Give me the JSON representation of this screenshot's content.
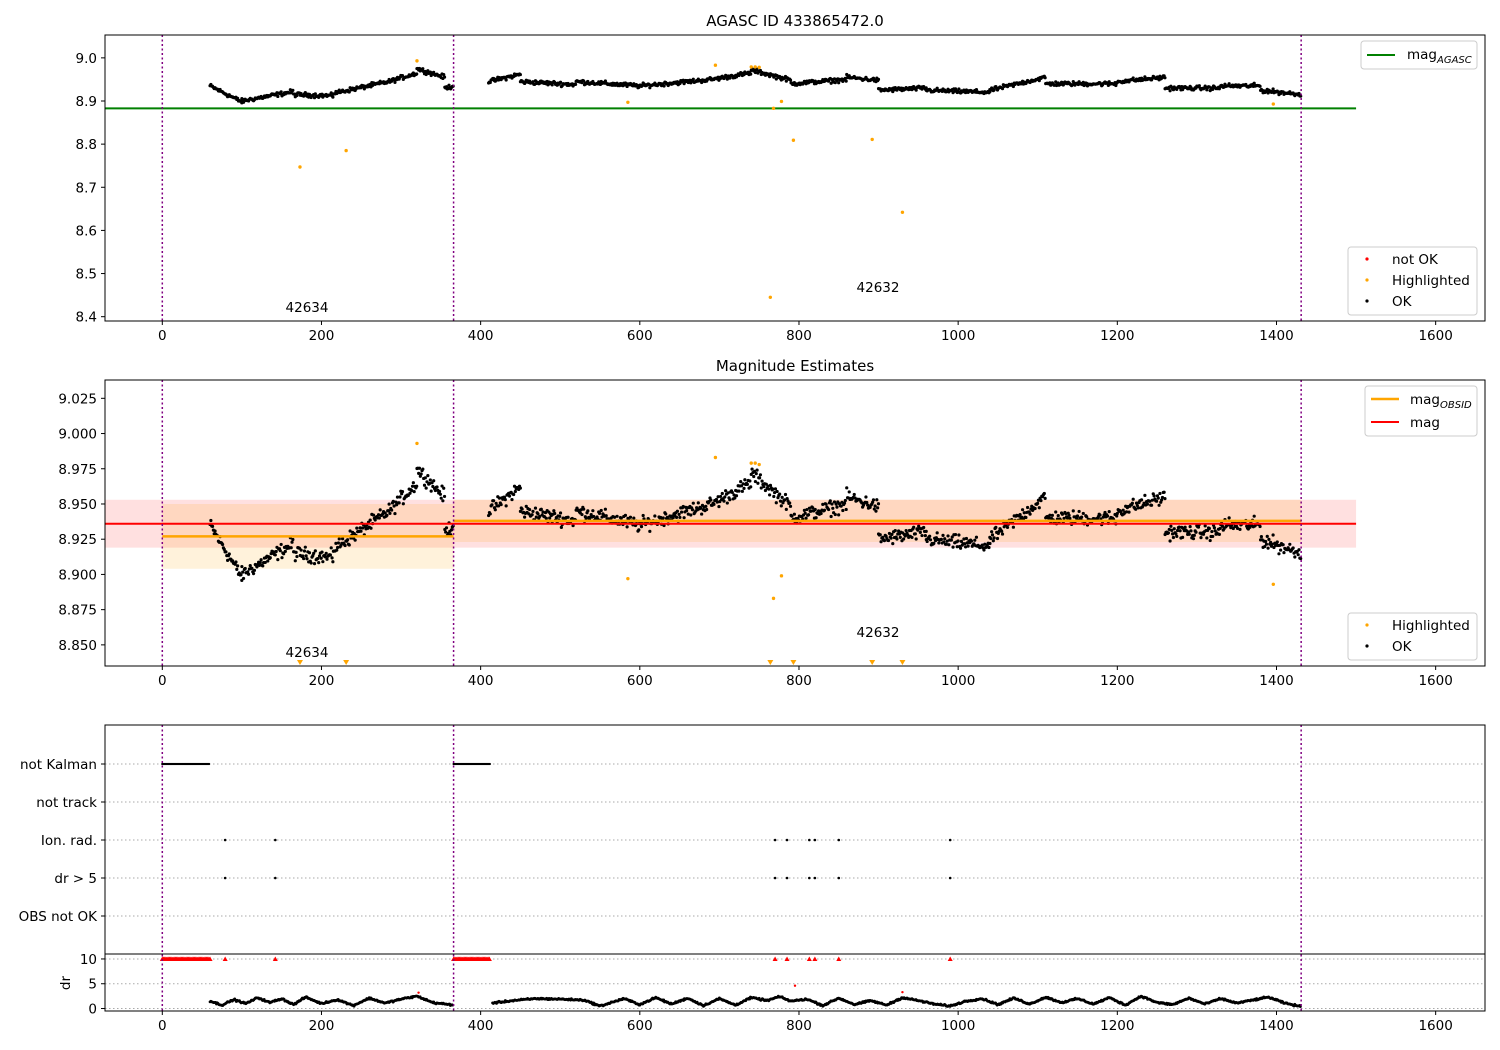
{
  "chart_data": [
    {
      "type": "scatter",
      "title": "AGASC ID 433865472.0",
      "xlim": [
        -72,
        1662
      ],
      "ylim": [
        8.39,
        9.053
      ],
      "x_ticks": [
        0,
        200,
        400,
        600,
        800,
        1000,
        1200,
        1400,
        1600
      ],
      "y_ticks": [
        8.4,
        8.5,
        8.6,
        8.7,
        8.8,
        8.9,
        9.0
      ],
      "y_tick_labels": [
        "8.4",
        "8.5",
        "8.6",
        "8.7",
        "8.8",
        "8.9",
        "9.0"
      ],
      "grid": false,
      "obs_boundaries": [
        0,
        366,
        1431
      ],
      "annotations": [
        {
          "text": "42634",
          "x": 183,
          "y": 8.415
        },
        {
          "text": "42632",
          "x": 900,
          "y": 8.462
        }
      ],
      "mag_agasc": {
        "name": "mag",
        "subscript": "AGASC",
        "value": 8.883,
        "x": [
          -72,
          1500
        ],
        "color": "#008000"
      },
      "highlighted_points": [
        [
          173,
          8.747
        ],
        [
          231,
          8.785
        ],
        [
          320,
          8.993
        ],
        [
          585,
          8.897
        ],
        [
          695,
          8.983
        ],
        [
          740,
          8.979
        ],
        [
          745,
          8.979
        ],
        [
          750,
          8.978
        ],
        [
          764,
          8.445
        ],
        [
          768,
          8.883
        ],
        [
          778,
          8.899
        ],
        [
          793,
          8.809
        ],
        [
          892,
          8.811
        ],
        [
          930,
          8.642
        ],
        [
          1396,
          8.893
        ]
      ],
      "ok_segments": [
        {
          "x0": 60,
          "x1": 100,
          "y0": 8.935,
          "y1": 8.898
        },
        {
          "x0": 100,
          "x1": 165,
          "y0": 8.9,
          "y1": 8.922
        },
        {
          "x0": 165,
          "x1": 215,
          "y0": 8.915,
          "y1": 8.912
        },
        {
          "x0": 215,
          "x1": 285,
          "y0": 8.918,
          "y1": 8.945
        },
        {
          "x0": 285,
          "x1": 320,
          "y0": 8.945,
          "y1": 8.965
        },
        {
          "x0": 320,
          "x1": 355,
          "y0": 8.975,
          "y1": 8.955
        },
        {
          "x0": 355,
          "x1": 366,
          "y0": 8.93,
          "y1": 8.935
        },
        {
          "x0": 410,
          "x1": 450,
          "y0": 8.945,
          "y1": 8.962
        },
        {
          "x0": 450,
          "x1": 520,
          "y0": 8.945,
          "y1": 8.938
        },
        {
          "x0": 520,
          "x1": 600,
          "y0": 8.945,
          "y1": 8.935
        },
        {
          "x0": 600,
          "x1": 690,
          "y0": 8.935,
          "y1": 8.95
        },
        {
          "x0": 690,
          "x1": 740,
          "y0": 8.95,
          "y1": 8.965
        },
        {
          "x0": 740,
          "x1": 790,
          "y0": 8.972,
          "y1": 8.948
        },
        {
          "x0": 790,
          "x1": 860,
          "y0": 8.94,
          "y1": 8.95
        },
        {
          "x0": 860,
          "x1": 900,
          "y0": 8.955,
          "y1": 8.948
        },
        {
          "x0": 900,
          "x1": 960,
          "y0": 8.925,
          "y1": 8.93
        },
        {
          "x0": 960,
          "x1": 1040,
          "y0": 8.925,
          "y1": 8.92
        },
        {
          "x0": 1040,
          "x1": 1110,
          "y0": 8.925,
          "y1": 8.955
        },
        {
          "x0": 1110,
          "x1": 1200,
          "y0": 8.94,
          "y1": 8.94
        },
        {
          "x0": 1200,
          "x1": 1260,
          "y0": 8.945,
          "y1": 8.955
        },
        {
          "x0": 1260,
          "x1": 1330,
          "y0": 8.93,
          "y1": 8.93
        },
        {
          "x0": 1330,
          "x1": 1380,
          "y0": 8.935,
          "y1": 8.935
        },
        {
          "x0": 1380,
          "x1": 1431,
          "y0": 8.925,
          "y1": 8.915
        }
      ],
      "legend_lines": [
        {
          "label": "mag",
          "subscript": "AGASC",
          "color": "#008000"
        }
      ],
      "legend_points": [
        {
          "label": "not OK",
          "color": "#ff0000"
        },
        {
          "label": "Highlighted",
          "color": "#ffa500"
        },
        {
          "label": "OK",
          "color": "#000000"
        }
      ],
      "legend_placement": [
        "upper right",
        "lower right"
      ]
    },
    {
      "type": "scatter",
      "title": "Magnitude Estimates",
      "xlim": [
        -72,
        1662
      ],
      "ylim": [
        8.835,
        9.038
      ],
      "x_ticks": [
        0,
        200,
        400,
        600,
        800,
        1000,
        1200,
        1400,
        1600
      ],
      "y_ticks": [
        8.85,
        8.875,
        8.9,
        8.925,
        8.95,
        8.975,
        9.0,
        9.025
      ],
      "y_tick_labels": [
        "8.850",
        "8.875",
        "8.900",
        "8.925",
        "8.950",
        "8.975",
        "9.000",
        "9.025"
      ],
      "grid": false,
      "obs_boundaries": [
        0,
        366,
        1431
      ],
      "annotations": [
        {
          "text": "42634",
          "x": 183,
          "y": 8.842
        },
        {
          "text": "42632",
          "x": 900,
          "y": 8.856
        }
      ],
      "mag": {
        "name": "mag",
        "value": 8.936,
        "band": [
          8.919,
          8.953
        ],
        "x": [
          -72,
          1500
        ],
        "color": "#ff0000"
      },
      "mag_obsid": {
        "name": "mag",
        "subscript": "OBSID",
        "color": "#ffa500",
        "segments": [
          {
            "x": [
              0,
              366
            ],
            "value": 8.927,
            "band": [
              8.904,
              8.95
            ]
          },
          {
            "x": [
              366,
              1431
            ],
            "value": 8.938,
            "band": [
              8.923,
              8.953
            ]
          }
        ]
      },
      "highlighted_points": [
        [
          320,
          8.993
        ],
        [
          585,
          8.897
        ],
        [
          695,
          8.983
        ],
        [
          740,
          8.979
        ],
        [
          745,
          8.979
        ],
        [
          750,
          8.978
        ],
        [
          768,
          8.883
        ],
        [
          778,
          8.899
        ],
        [
          1396,
          8.893
        ]
      ],
      "off_scale_markers_x": [
        173,
        231,
        764,
        793,
        892,
        930
      ],
      "ok_segments": [
        {
          "x0": 60,
          "x1": 100,
          "y0": 8.935,
          "y1": 8.898
        },
        {
          "x0": 100,
          "x1": 165,
          "y0": 8.9,
          "y1": 8.922
        },
        {
          "x0": 165,
          "x1": 215,
          "y0": 8.915,
          "y1": 8.912
        },
        {
          "x0": 215,
          "x1": 285,
          "y0": 8.918,
          "y1": 8.945
        },
        {
          "x0": 285,
          "x1": 320,
          "y0": 8.945,
          "y1": 8.965
        },
        {
          "x0": 320,
          "x1": 355,
          "y0": 8.975,
          "y1": 8.955
        },
        {
          "x0": 355,
          "x1": 366,
          "y0": 8.93,
          "y1": 8.935
        },
        {
          "x0": 410,
          "x1": 450,
          "y0": 8.945,
          "y1": 8.962
        },
        {
          "x0": 450,
          "x1": 520,
          "y0": 8.945,
          "y1": 8.938
        },
        {
          "x0": 520,
          "x1": 600,
          "y0": 8.945,
          "y1": 8.935
        },
        {
          "x0": 600,
          "x1": 690,
          "y0": 8.935,
          "y1": 8.95
        },
        {
          "x0": 690,
          "x1": 740,
          "y0": 8.95,
          "y1": 8.965
        },
        {
          "x0": 740,
          "x1": 790,
          "y0": 8.972,
          "y1": 8.948
        },
        {
          "x0": 790,
          "x1": 860,
          "y0": 8.94,
          "y1": 8.95
        },
        {
          "x0": 860,
          "x1": 900,
          "y0": 8.955,
          "y1": 8.948
        },
        {
          "x0": 900,
          "x1": 960,
          "y0": 8.925,
          "y1": 8.93
        },
        {
          "x0": 960,
          "x1": 1040,
          "y0": 8.925,
          "y1": 8.92
        },
        {
          "x0": 1040,
          "x1": 1110,
          "y0": 8.925,
          "y1": 8.955
        },
        {
          "x0": 1110,
          "x1": 1200,
          "y0": 8.94,
          "y1": 8.94
        },
        {
          "x0": 1200,
          "x1": 1260,
          "y0": 8.945,
          "y1": 8.955
        },
        {
          "x0": 1260,
          "x1": 1330,
          "y0": 8.93,
          "y1": 8.93
        },
        {
          "x0": 1330,
          "x1": 1380,
          "y0": 8.935,
          "y1": 8.935
        },
        {
          "x0": 1380,
          "x1": 1431,
          "y0": 8.925,
          "y1": 8.915
        }
      ],
      "legend_lines": [
        {
          "label": "mag",
          "subscript": "OBSID",
          "color": "#ffa500"
        },
        {
          "label": "mag",
          "color": "#ff0000"
        }
      ],
      "legend_points": [
        {
          "label": "Highlighted",
          "color": "#ffa500"
        },
        {
          "label": "OK",
          "color": "#000000"
        }
      ],
      "legend_placement": [
        "upper right",
        "lower right"
      ]
    },
    {
      "type": "scatter",
      "title": "",
      "xlim": [
        -72,
        1662
      ],
      "x_ticks": [
        0,
        200,
        400,
        600,
        800,
        1000,
        1200,
        1400,
        1600
      ],
      "obs_boundaries": [
        0,
        366,
        1431
      ],
      "grid": true,
      "flag_rows": [
        {
          "label": "not Kalman",
          "points_x": [],
          "ranges": [
            [
              0,
              60
            ],
            [
              366,
              412
            ]
          ]
        },
        {
          "label": "not track",
          "points_x": [],
          "ranges": []
        },
        {
          "label": "Ion. rad.",
          "points_x": [
            79,
            142,
            770,
            785,
            813,
            820,
            850,
            990
          ],
          "ranges": []
        },
        {
          "label": "dr > 5",
          "points_x": [
            79,
            142,
            770,
            785,
            813,
            820,
            850,
            990
          ],
          "ranges": []
        },
        {
          "label": "OBS not OK",
          "points_x": [],
          "ranges": []
        }
      ],
      "dr": {
        "ylabel": "dr",
        "ylim": [
          -0.5,
          11
        ],
        "y_ticks": [
          0,
          5,
          10
        ],
        "y_tick_labels": [
          "0",
          "5",
          "10"
        ],
        "capped_value": 10,
        "capped_ranges": [
          [
            0,
            60
          ],
          [
            366,
            412
          ]
        ],
        "capped_points_x": [
          79,
          142,
          770,
          785,
          813,
          820,
          850,
          990
        ],
        "red_points": [
          [
            322,
            3.2
          ],
          [
            795,
            4.6
          ],
          [
            930,
            3.3
          ]
        ],
        "points": [
          [
            60,
            1.5
          ],
          [
            75,
            0.7
          ],
          [
            90,
            1.8
          ],
          [
            105,
            1.0
          ],
          [
            120,
            2.2
          ],
          [
            135,
            1.2
          ],
          [
            150,
            2.0
          ],
          [
            165,
            0.8
          ],
          [
            180,
            2.3
          ],
          [
            200,
            1.0
          ],
          [
            220,
            1.8
          ],
          [
            240,
            0.6
          ],
          [
            260,
            2.1
          ],
          [
            280,
            1.1
          ],
          [
            300,
            1.9
          ],
          [
            320,
            2.5
          ],
          [
            340,
            1.2
          ],
          [
            366,
            0.7
          ],
          [
            415,
            1.1
          ],
          [
            440,
            1.6
          ],
          [
            470,
            2.0
          ],
          [
            500,
            1.9
          ],
          [
            530,
            1.7
          ],
          [
            550,
            0.5
          ],
          [
            580,
            2.0
          ],
          [
            600,
            0.8
          ],
          [
            620,
            2.2
          ],
          [
            640,
            0.9
          ],
          [
            660,
            2.1
          ],
          [
            680,
            0.6
          ],
          [
            700,
            2.0
          ],
          [
            720,
            0.7
          ],
          [
            740,
            2.2
          ],
          [
            760,
            1.6
          ],
          [
            775,
            2.4
          ],
          [
            790,
            1.5
          ],
          [
            810,
            1.9
          ],
          [
            830,
            0.6
          ],
          [
            850,
            2.1
          ],
          [
            870,
            0.8
          ],
          [
            890,
            1.6
          ],
          [
            910,
            0.7
          ],
          [
            930,
            2.2
          ],
          [
            950,
            1.6
          ],
          [
            970,
            0.9
          ],
          [
            990,
            0.5
          ],
          [
            1010,
            1.5
          ],
          [
            1030,
            2.0
          ],
          [
            1050,
            0.8
          ],
          [
            1070,
            2.1
          ],
          [
            1090,
            0.9
          ],
          [
            1110,
            2.3
          ],
          [
            1130,
            1.2
          ],
          [
            1150,
            2.0
          ],
          [
            1170,
            0.9
          ],
          [
            1190,
            2.2
          ],
          [
            1210,
            0.7
          ],
          [
            1230,
            2.5
          ],
          [
            1250,
            1.2
          ],
          [
            1270,
            0.8
          ],
          [
            1290,
            2.1
          ],
          [
            1310,
            0.9
          ],
          [
            1330,
            2.0
          ],
          [
            1350,
            1.1
          ],
          [
            1370,
            1.7
          ],
          [
            1390,
            2.3
          ],
          [
            1410,
            1.1
          ],
          [
            1431,
            0.4
          ]
        ]
      }
    }
  ],
  "colors": {
    "ok": "#000000",
    "highlighted": "#ffa500",
    "not_ok": "#ff0000",
    "mag_agasc": "#008000",
    "mag": "#ff0000",
    "mag_obsid": "#ffa500",
    "boundary": "#800080"
  }
}
